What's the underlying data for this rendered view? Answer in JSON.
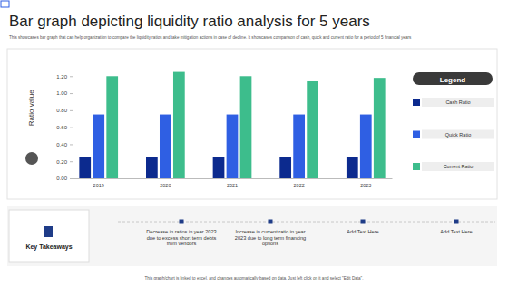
{
  "chart_data": {
    "type": "bar",
    "title": "Bar graph depicting liquidity ratio analysis for 5 years",
    "subtitle": "This showcases bar graph that can help organization to compare the liquidity ratios and take mitigation actions in case of decline. It showcases comparison of cash, quick and current ratio for a period of 5 financial years",
    "y_label": "Ratio value",
    "legend_title": "Legend",
    "categories": [
      "2019",
      "2020",
      "2021",
      "2022",
      "2023"
    ],
    "series": [
      {
        "name": "Cash Ratio",
        "color": "#0c2a8e",
        "values": [
          0.25,
          0.25,
          0.25,
          0.25,
          0.25
        ]
      },
      {
        "name": "Quick Ratio",
        "color": "#2f5fe3",
        "values": [
          0.75,
          0.75,
          0.75,
          0.75,
          0.75
        ]
      },
      {
        "name": "Current Ratio",
        "color": "#3dbd8c",
        "values": [
          1.2,
          1.25,
          1.2,
          1.15,
          1.18
        ]
      }
    ],
    "ylim": [
      0,
      1.4
    ],
    "yticks": [
      {
        "value": 0,
        "label": "0.00"
      },
      {
        "value": 0.2,
        "label": "0.20"
      },
      {
        "value": 0.4,
        "label": "0.40"
      },
      {
        "value": 0.6,
        "label": "0.60"
      },
      {
        "value": 0.8,
        "label": "0.80"
      },
      {
        "value": 1,
        "label": "1.00"
      },
      {
        "value": 1.2,
        "label": "1.20"
      }
    ],
    "grid": false,
    "legend": "right"
  },
  "key_takeaways": {
    "title": "Key Takeaways",
    "items": [
      "Decrease in ratios in year 2023 due to excess short term debts from vendors",
      "Increase in current ratio in year 2023 due to long term financing options",
      "Add Text Here",
      "Add Text Here"
    ]
  },
  "footer": "This graph/chart is linked to excel, and changes automatically based on data. Just left click on it and select \"Edit Data\"."
}
